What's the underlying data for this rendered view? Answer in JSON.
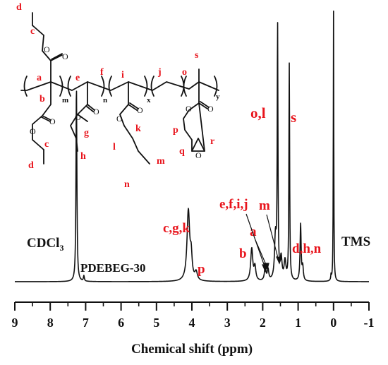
{
  "chart_data": {
    "type": "line",
    "xlabel": "Chemical shift (ppm)",
    "xlim": [
      9,
      -1
    ],
    "x_reversed": true,
    "ticks": [
      "9",
      "8",
      "7",
      "6",
      "5",
      "4",
      "3",
      "2",
      "1",
      "0",
      "-1"
    ],
    "tick_values": [
      9,
      8,
      7,
      6,
      5,
      4,
      3,
      2,
      1,
      0,
      -1
    ],
    "grid": false,
    "series": [
      {
        "name": "PDEBEG-30",
        "peaks": [
          {
            "ppm": 7.26,
            "height": 0.73,
            "width": 0.015
          },
          {
            "ppm": 7.05,
            "height": 0.02,
            "width": 0.015
          },
          {
            "ppm": 4.1,
            "height": 0.26,
            "width": 0.045
          },
          {
            "ppm": 4.02,
            "height": 0.08,
            "width": 0.03
          },
          {
            "ppm": 3.88,
            "height": 0.03,
            "width": 0.04
          },
          {
            "ppm": 2.31,
            "height": 0.12,
            "width": 0.035
          },
          {
            "ppm": 2.22,
            "height": 0.05,
            "width": 0.03
          },
          {
            "ppm": 1.93,
            "height": 0.05,
            "width": 0.025
          },
          {
            "ppm": 1.85,
            "height": 0.04,
            "width": 0.025
          },
          {
            "ppm": 1.64,
            "height": 0.16,
            "width": 0.03
          },
          {
            "ppm": 1.58,
            "height": 0.93,
            "width": 0.012
          },
          {
            "ppm": 1.48,
            "height": 0.08,
            "width": 0.03
          },
          {
            "ppm": 1.37,
            "height": 0.07,
            "width": 0.03
          },
          {
            "ppm": 1.25,
            "height": 0.8,
            "width": 0.012
          },
          {
            "ppm": 0.93,
            "height": 0.21,
            "width": 0.018
          },
          {
            "ppm": 0.87,
            "height": 0.05,
            "width": 0.02
          },
          {
            "ppm": 0.07,
            "height": 0.02,
            "width": 0.01
          },
          {
            "ppm": 0.0,
            "height": 1.0,
            "width": 0.008
          }
        ]
      }
    ]
  },
  "labels": {
    "cdcl3_main": "CDCl",
    "cdcl3_sub": "3",
    "sample": "PDEBEG-30",
    "tms": "TMS",
    "peak_cgk": "c,g,k",
    "peak_p": "p",
    "peak_b": "b",
    "peak_a": "a",
    "peak_efij": "e,f,i,j",
    "peak_m": "m",
    "peak_ol": "o,l",
    "peak_s": "s",
    "peak_dhn": "d,h,n"
  },
  "structure": {
    "letters": {
      "a": "a",
      "b": "b",
      "c_top": "c",
      "c_bottom": "c",
      "d_top": "d",
      "d_bottom": "d",
      "e": "e",
      "f": "f",
      "g": "g",
      "h": "h",
      "i": "i",
      "j": "j",
      "k": "k",
      "l": "l",
      "m": "m",
      "n": "n",
      "o": "o",
      "p": "p",
      "q": "q",
      "r": "r",
      "s": "s"
    },
    "subscripts": {
      "m": "m",
      "n": "n",
      "x": "x",
      "y": "y"
    },
    "atoms": {
      "o": "O"
    }
  },
  "colors": {
    "label_red": "#e8141c",
    "spectrum_black": "#111111"
  }
}
